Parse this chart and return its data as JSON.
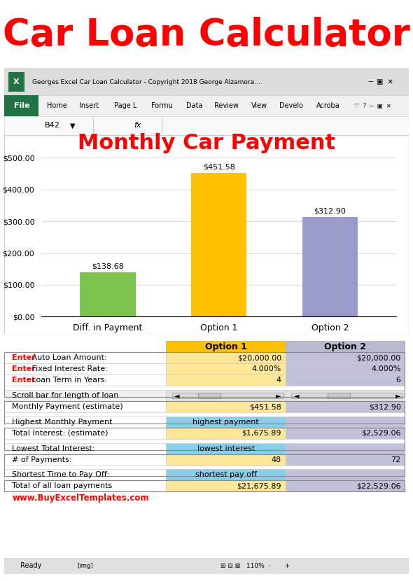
{
  "title": "Car Loan Calculator",
  "title_color": "#FF0000",
  "title_fontsize": 38,
  "chart_title": "Monthly Car Payment",
  "chart_title_color": "#FF0000",
  "chart_title_fontsize": 22,
  "bar_categories": [
    "Diff. in Payment",
    "Option 1",
    "Option 2"
  ],
  "bar_values": [
    138.68,
    451.58,
    312.9
  ],
  "bar_colors": [
    "#7DC44E",
    "#FFC000",
    "#9999CC"
  ],
  "bar_labels": [
    "$138.68",
    "$451.58",
    "$312.90"
  ],
  "y_ticks": [
    0,
    100,
    200,
    300,
    400,
    500
  ],
  "y_tick_labels": [
    "$0.00",
    "$100.00",
    "$200.00",
    "$300.00",
    "$400.00",
    "$500.00"
  ],
  "excel_title": "Georges Excel Car Loan Calculator - Copyright 2018 George Alzamora....",
  "cell_ref": "B42",
  "header_option1": "Option 1",
  "header_option2": "Option 2",
  "rows": [
    {
      "label": "Enter Auto Loan Amount:",
      "label_red": "Enter",
      "val1": "$20,000.00",
      "val2": "$20,000.00",
      "bg1": "#FFE699",
      "bg2": "#C0C0D8"
    },
    {
      "label": "Enter Fixed Interest Rate:",
      "label_red": "Enter",
      "val1": "4.000%",
      "val2": "4.000%",
      "bg1": "#FFE699",
      "bg2": "#C0C0D8"
    },
    {
      "label": "Enter Loan Term in Years:",
      "label_red": "Enter",
      "val1": "4",
      "val2": "6",
      "bg1": "#FFE699",
      "bg2": "#C0C0D8"
    },
    {
      "label": "Scroll bar for length of loan",
      "label_red": "",
      "val1": "SCROLLBAR",
      "val2": "SCROLLBAR",
      "bg1": "#E0E0E0",
      "bg2": "#E0E0E0"
    },
    {
      "label": "Monthly Payment (estimate)",
      "label_red": "",
      "val1": "$451.58",
      "val2": "$312.90",
      "bg1": "#FFE699",
      "bg2": "#C0C0D8"
    },
    {
      "label": "Highest Monthly Payment",
      "label_red": "",
      "val1": "highest payment",
      "val2": "",
      "bg1": "#87CEEB",
      "bg2": "#C0C0D8"
    },
    {
      "label": "Total Interest: (estimate)",
      "label_red": "",
      "val1": "$1,675.89",
      "val2": "$2,529.06",
      "bg1": "#FFE699",
      "bg2": "#C0C0D8"
    },
    {
      "label": "Lowest Total Interest:",
      "label_red": "",
      "val1": "lowest interest",
      "val2": "",
      "bg1": "#87CEEB",
      "bg2": "#C0C0D8"
    },
    {
      "label": "# of Payments:",
      "label_red": "",
      "val1": "48",
      "val2": "72",
      "bg1": "#FFE699",
      "bg2": "#C0C0D8"
    },
    {
      "label": "Shortest Time to Pay Off:",
      "label_red": "",
      "val1": "shortest pay off",
      "val2": "",
      "bg1": "#87CEEB",
      "bg2": "#C0C0D8"
    },
    {
      "label": "Total of all loan payments",
      "label_red": "",
      "val1": "$21,675.89",
      "val2": "$22,529.06",
      "bg1": "#FFE699",
      "bg2": "#C0C0D8"
    }
  ],
  "website": "www.BuyExcelTemplates.com",
  "website_color": "#FF0000",
  "bg_color": "#FFFFFF",
  "excel_bg": "#F0F0F0",
  "ribbon_green": "#217346",
  "status_bar_color": "#F0F0F0"
}
